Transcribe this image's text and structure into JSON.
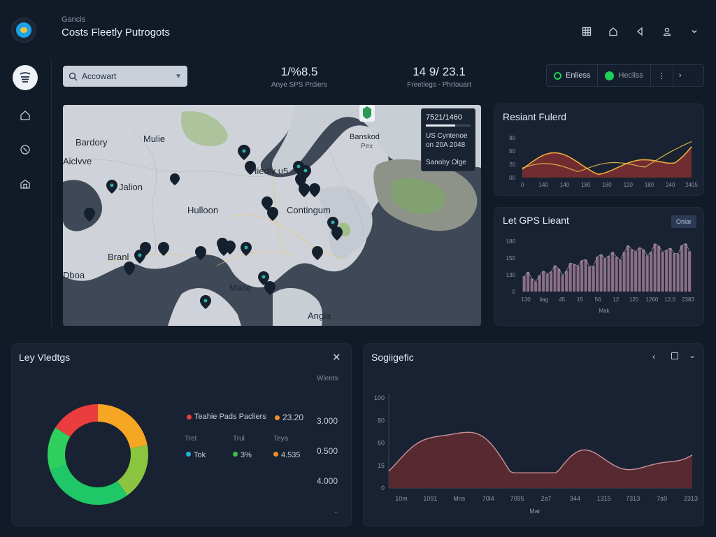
{
  "header": {
    "subtitle": "Gancis",
    "title": "Costs Fleetly Putrogots",
    "icons": [
      "grid-icon",
      "home-icon",
      "back-icon",
      "user-icon",
      "chevron-down-icon"
    ]
  },
  "sidebar": {
    "items": [
      {
        "name": "stack-icon",
        "active": true
      },
      {
        "name": "home-icon",
        "active": false
      },
      {
        "name": "clock-icon",
        "active": false
      },
      {
        "name": "building-icon",
        "active": false
      }
    ]
  },
  "search": {
    "placeholder": "Accowart"
  },
  "stats": [
    {
      "value": "1/%8.5",
      "label": "Anye SPS Prdiers"
    },
    {
      "value": "14 9/ 23.1",
      "label": "Freetlegs - Phrtouart"
    }
  ],
  "toggles": [
    {
      "label": "Enliess",
      "dot_color": "#1fcf5a"
    },
    {
      "label": "Hecliss",
      "dot_color": "#1fcf5a"
    }
  ],
  "map": {
    "labels": [
      {
        "text": "Bardory"
      },
      {
        "text": "Mulie"
      },
      {
        "text": "Aiclvve"
      },
      {
        "text": "Jalion"
      },
      {
        "text": "Hiedly u5"
      },
      {
        "text": "Hulloon"
      },
      {
        "text": "Contingum"
      },
      {
        "text": "Branl"
      },
      {
        "text": "Dboa"
      },
      {
        "text": "Malle"
      },
      {
        "text": "Angia"
      }
    ],
    "city": {
      "name": "Banskod",
      "sub": "Pex"
    },
    "tooltip": {
      "line1": "7521/1460",
      "line2": "US Cyntenoe",
      "line3": "on 20A 2048",
      "line4": "Sanoby Olge"
    }
  },
  "resiant_chart": {
    "title": "Resiant Fulerd",
    "yticks": [
      "80",
      "50",
      "20",
      "00"
    ],
    "xticks": [
      "0",
      "140",
      "140",
      "180",
      "180",
      "120",
      "180",
      "240",
      "2405"
    ]
  },
  "gps_chart": {
    "title": "Let GPS Lieant",
    "button": "Onlar",
    "yticks": [
      "180",
      "150",
      "130",
      "0"
    ],
    "xticks": [
      "130",
      "liag",
      "45",
      "15",
      "56",
      "12",
      "120",
      "1260",
      "12.0",
      "2383"
    ],
    "xlabel": "Mak"
  },
  "key_metrics": {
    "title": "Ley Vledtgs",
    "col_header": "Wlents",
    "legend_title": "Teahie Pads Pacliers",
    "legend_value": "23.20",
    "rows": [
      {
        "label": "Tret",
        "dot": "#1fb2d6",
        "value": "Tok"
      },
      {
        "label": "Trul",
        "dot": "#37c24a",
        "value": "3%"
      },
      {
        "label": "Teya",
        "dot": "#f08d23",
        "value": "4.535"
      }
    ],
    "column_values": [
      "3.000",
      "0.500",
      "4.000"
    ],
    "donut": [
      {
        "value": 22,
        "color": "#f5a623"
      },
      {
        "value": 18,
        "color": "#8bc53f"
      },
      {
        "value": 30,
        "color": "#1fc766"
      },
      {
        "value": 14,
        "color": "#2fcf5e"
      },
      {
        "value": 16,
        "color": "#ea3d3d"
      }
    ]
  },
  "segment_chart": {
    "title": "Sogiigefic",
    "yticks": [
      "100",
      "80",
      "60",
      "15",
      "0"
    ],
    "xticks": [
      "10m",
      "1091",
      "Mns",
      "70l4",
      "7095",
      "2a7",
      "344",
      "1315",
      "7313",
      "7a9",
      "2313"
    ],
    "xlabel": "Mar"
  }
}
